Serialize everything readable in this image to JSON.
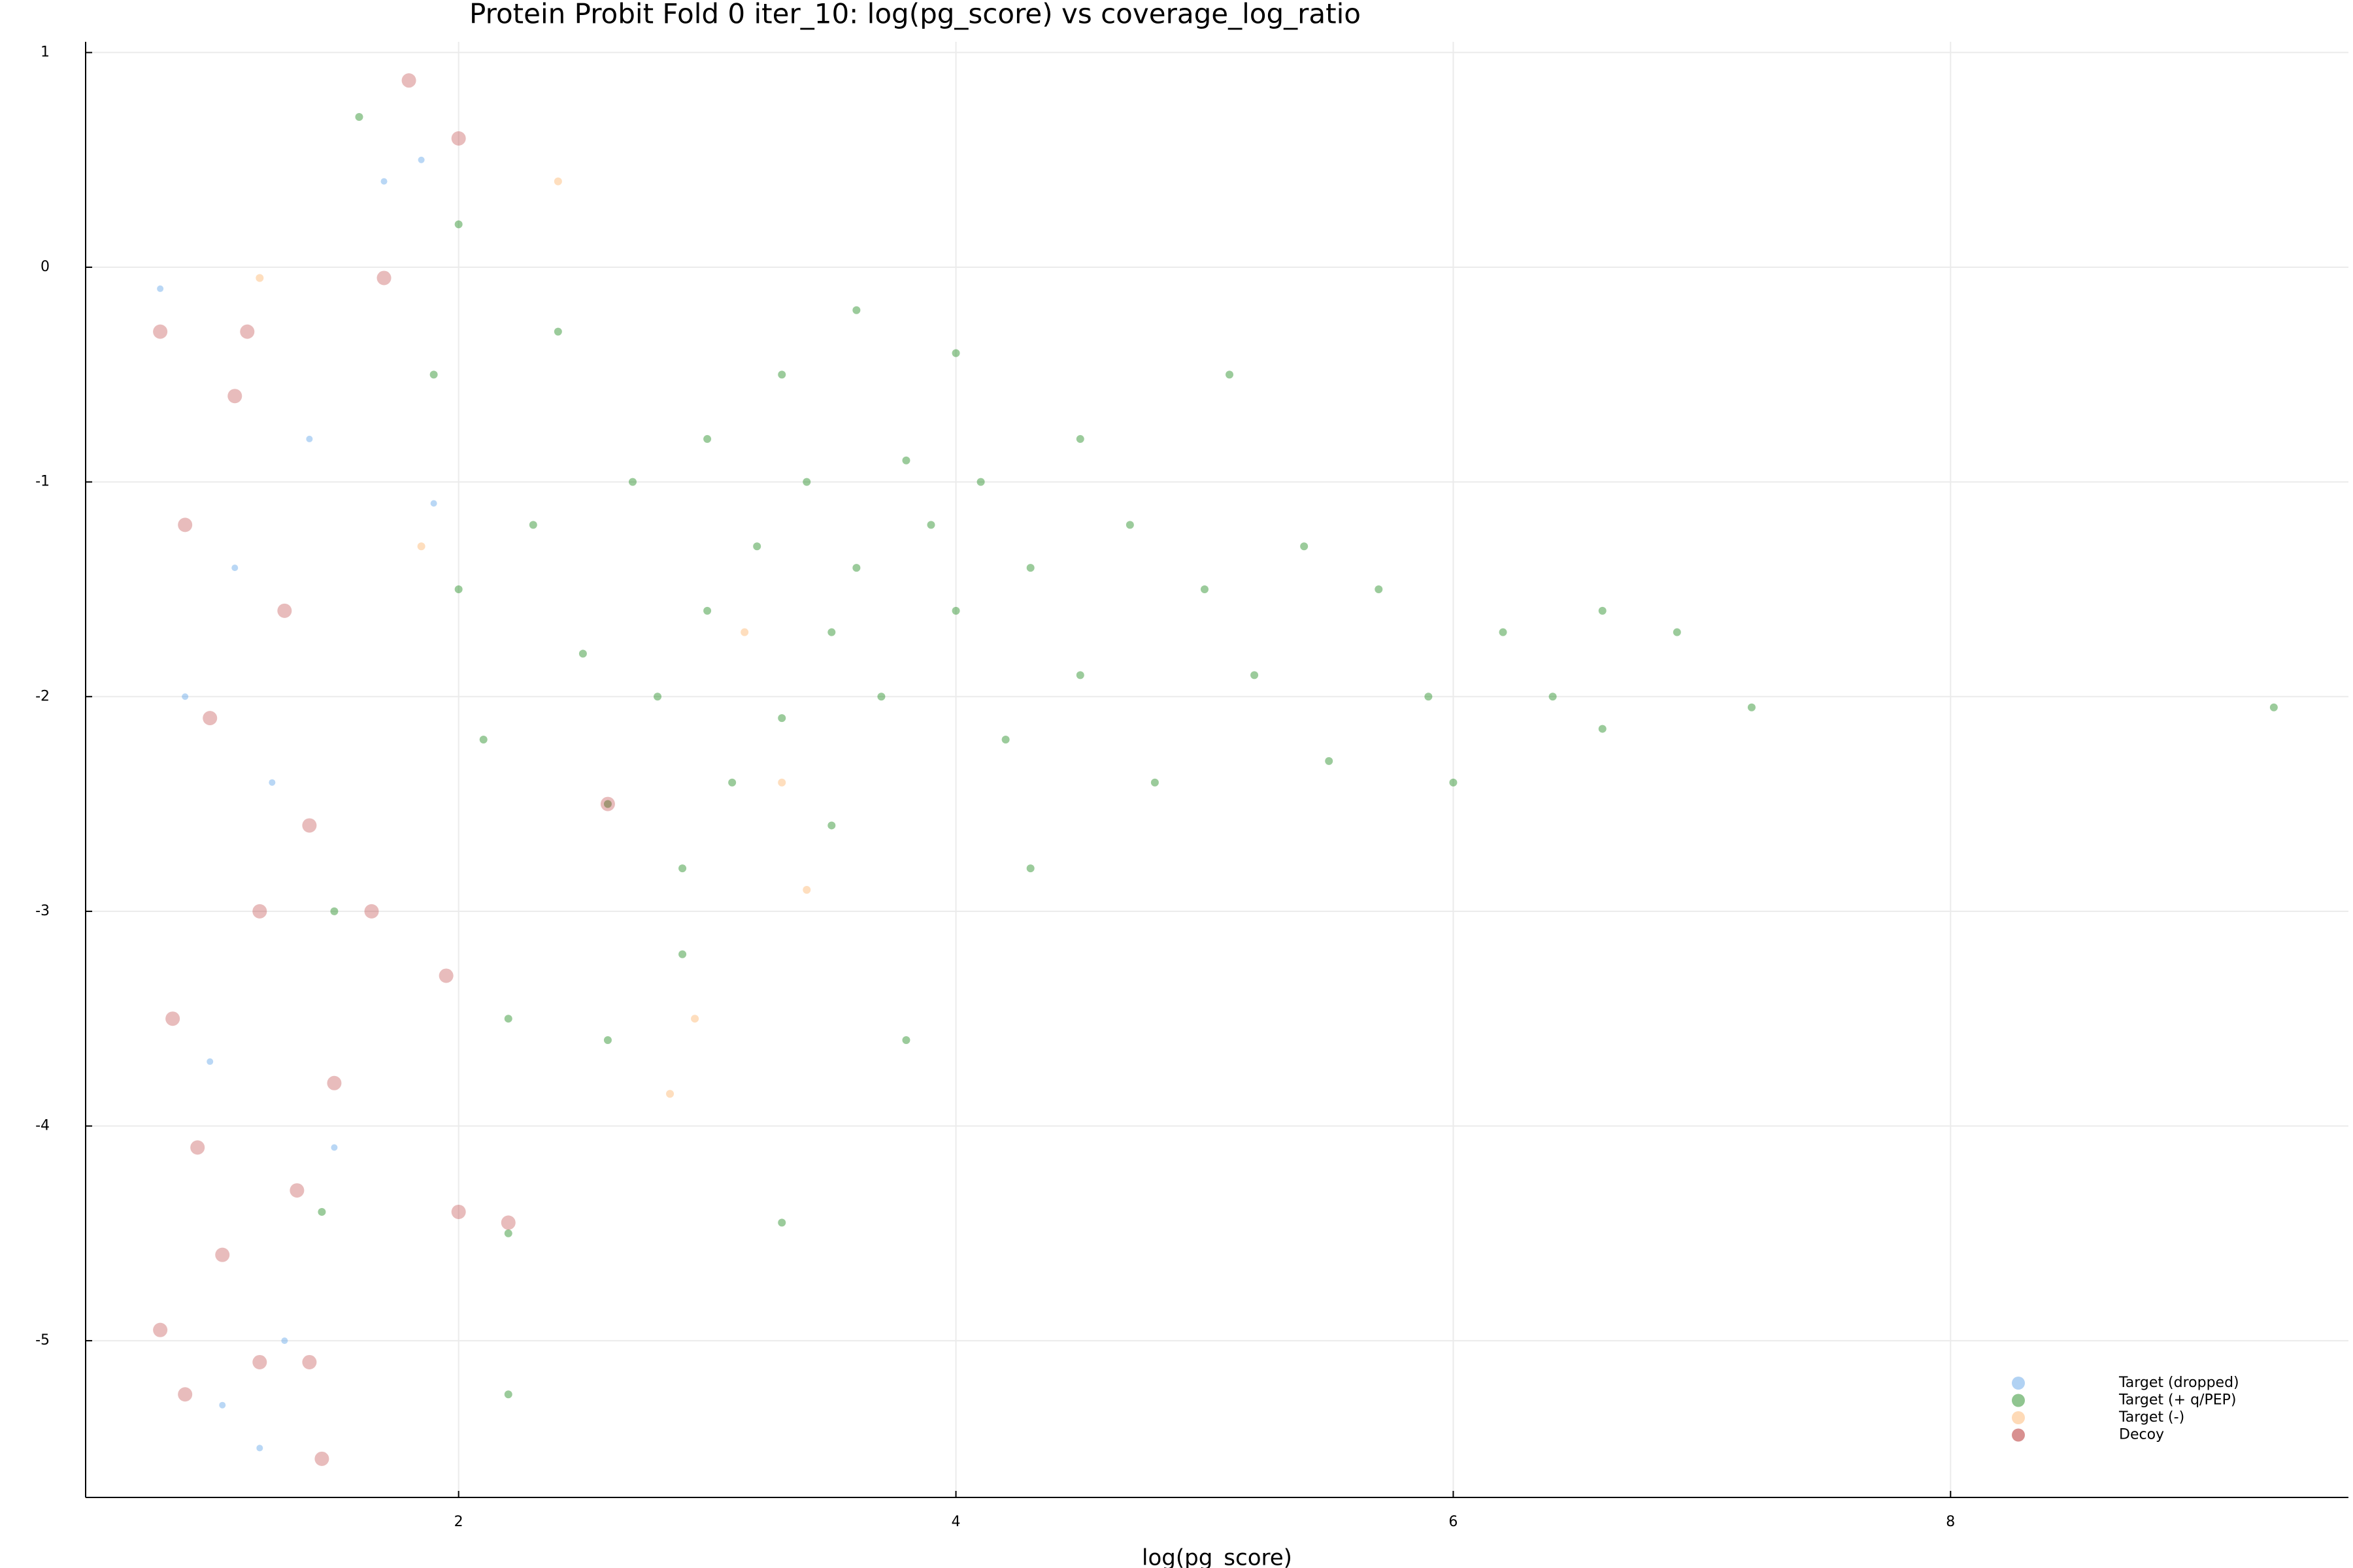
{
  "chart_data": {
    "type": "scatter",
    "title": "Protein Probit Fold 0 iter_10: log(pg_score) vs coverage_log_ratio",
    "x_label": "log(pg_score)",
    "xlim": [
      0.5,
      9.6
    ],
    "xticks": [
      2,
      4,
      6,
      8
    ],
    "ylim": [
      -5.73,
      1.05
    ],
    "yticks": [
      1,
      0,
      -1,
      -2,
      -3,
      -4,
      -5
    ],
    "grid": true,
    "legend": "bottom-right",
    "series": [
      {
        "name": "Target (dropped)",
        "color": "#64a6e8",
        "x": [
          0.8,
          0.9,
          1.0,
          1.1,
          1.25,
          1.4,
          1.5,
          1.3,
          1.05,
          1.2,
          1.85,
          1.9,
          1.7
        ],
        "values": [
          -0.1,
          -2.0,
          -3.7,
          -1.4,
          -2.4,
          -0.8,
          -4.1,
          -5.0,
          -5.3,
          -5.5,
          0.5,
          -1.1,
          0.4
        ]
      },
      {
        "name": "Target (+ q/PEP)",
        "color": "#228b22",
        "x": [
          1.9,
          2.0,
          2.1,
          2.2,
          2.2,
          2.2,
          2.3,
          2.4,
          2.5,
          2.6,
          2.6,
          2.7,
          2.8,
          2.9,
          2.9,
          3.0,
          3.0,
          3.1,
          3.2,
          3.3,
          3.3,
          3.4,
          3.5,
          3.5,
          3.6,
          3.6,
          3.7,
          3.8,
          3.8,
          3.9,
          4.0,
          4.0,
          4.1,
          4.2,
          4.3,
          4.3,
          4.5,
          4.5,
          4.7,
          4.8,
          5.0,
          5.1,
          5.2,
          5.4,
          5.5,
          5.7,
          5.9,
          6.0,
          6.2,
          6.4,
          6.6,
          6.6,
          6.9,
          7.2,
          9.3,
          1.5,
          1.45,
          2.0,
          1.6,
          3.3
        ],
        "values": [
          -0.5,
          -1.5,
          -2.2,
          -3.5,
          -4.5,
          -5.25,
          -1.2,
          -0.3,
          -1.8,
          -2.5,
          -3.6,
          -1.0,
          -2.0,
          -2.8,
          -3.2,
          -0.8,
          -1.6,
          -2.4,
          -1.3,
          -0.5,
          -2.1,
          -1.0,
          -1.7,
          -2.6,
          -0.2,
          -1.4,
          -2.0,
          -0.9,
          -3.6,
          -1.2,
          -0.4,
          -1.6,
          -1.0,
          -2.2,
          -1.4,
          -2.8,
          -0.8,
          -1.9,
          -1.2,
          -2.4,
          -1.5,
          -0.5,
          -1.9,
          -1.3,
          -2.3,
          -1.5,
          -2.0,
          -2.4,
          -1.7,
          -2.0,
          -1.6,
          -2.15,
          -1.7,
          -2.05,
          -2.05,
          -3.0,
          -4.4,
          0.2,
          0.7,
          -4.45
        ]
      },
      {
        "name": "Target (-)",
        "color": "#fdb66f",
        "x": [
          1.2,
          2.95,
          2.85,
          3.15,
          3.3,
          1.85,
          2.4,
          3.4
        ],
        "values": [
          -0.05,
          -3.5,
          -3.85,
          -1.7,
          -2.4,
          -1.3,
          0.4,
          -2.9
        ]
      },
      {
        "name": "Decoy",
        "color": "#b22222",
        "x": [
          0.8,
          0.9,
          1.0,
          1.1,
          1.2,
          1.3,
          1.4,
          1.5,
          0.85,
          0.95,
          1.05,
          1.2,
          1.4,
          0.9,
          1.45,
          1.15,
          1.35,
          0.8,
          1.8,
          2.0,
          1.7,
          2.0,
          2.2,
          1.95,
          2.6,
          1.65
        ],
        "values": [
          -0.3,
          -1.2,
          -2.1,
          -0.6,
          -3.0,
          -1.6,
          -2.6,
          -3.8,
          -3.5,
          -4.1,
          -4.6,
          -5.1,
          -5.1,
          -5.25,
          -5.55,
          -0.3,
          -4.3,
          -4.95,
          0.87,
          0.6,
          -0.05,
          -4.4,
          -4.45,
          -3.3,
          -2.5,
          -3.0
        ]
      }
    ]
  }
}
